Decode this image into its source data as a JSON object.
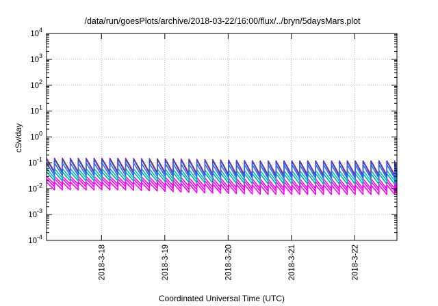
{
  "chart_data": {
    "type": "line",
    "title": "/data/run/goesPlots/archive/2018-03-22/16:00/flux/../bryn/5daysMars.plot",
    "xlabel": "Coordinated Universal Time (UTC)",
    "ylabel": "cSv/day",
    "yscale": "log",
    "ylim": [
      0.0001,
      10000
    ],
    "y_ticks": [
      {
        "value": 0.0001,
        "base": "10",
        "exp": "-4"
      },
      {
        "value": 0.001,
        "base": "10",
        "exp": "-3"
      },
      {
        "value": 0.01,
        "base": "10",
        "exp": "-2"
      },
      {
        "value": 0.1,
        "base": "10",
        "exp": "-1"
      },
      {
        "value": 1,
        "base": "10",
        "exp": "0"
      },
      {
        "value": 10,
        "base": "10",
        "exp": "1"
      },
      {
        "value": 100,
        "base": "10",
        "exp": "2"
      },
      {
        "value": 1000,
        "base": "10",
        "exp": "3"
      },
      {
        "value": 10000,
        "base": "10",
        "exp": "4"
      }
    ],
    "xlim": [
      "2018-03-17 03:10",
      "2018-03-22 16:00"
    ],
    "x_ticks": [
      {
        "value": "2018-03-18 00:00",
        "label": "2018-3-18"
      },
      {
        "value": "2018-03-19 00:00",
        "label": "2018-3-19"
      },
      {
        "value": "2018-03-20 00:00",
        "label": "2018-3-20"
      },
      {
        "value": "2018-03-21 00:00",
        "label": "2018-3-21"
      },
      {
        "value": "2018-03-22 00:00",
        "label": "2018-3-22"
      }
    ],
    "grid": true,
    "legend": "none",
    "series": [
      {
        "color": "#ff00ff",
        "pattern": "sawtooth",
        "peak_values": [
          0.018,
          0.018,
          0.016,
          0.014,
          0.014,
          0.014
        ],
        "trough_values": [
          0.009,
          0.009,
          0.007,
          0.006,
          0.006,
          0.006
        ]
      },
      {
        "color": "#ff00ff",
        "pattern": "sawtooth",
        "peak_values": [
          0.024,
          0.024,
          0.021,
          0.019,
          0.019,
          0.019
        ],
        "trough_values": [
          0.012,
          0.012,
          0.009,
          0.008,
          0.008,
          0.008
        ]
      },
      {
        "color": "#ff00ff",
        "pattern": "sawtooth",
        "peak_values": [
          0.03,
          0.03,
          0.027,
          0.024,
          0.024,
          0.024
        ],
        "trough_values": [
          0.015,
          0.015,
          0.012,
          0.01,
          0.01,
          0.01
        ]
      },
      {
        "color": "#00aaaa",
        "pattern": "sawtooth",
        "peak_values": [
          0.045,
          0.045,
          0.042,
          0.038,
          0.038,
          0.038
        ],
        "trough_values": [
          0.02,
          0.02,
          0.017,
          0.015,
          0.015,
          0.015
        ]
      },
      {
        "color": "#00bbbb",
        "pattern": "sawtooth",
        "peak_values": [
          0.06,
          0.06,
          0.055,
          0.05,
          0.05,
          0.05
        ],
        "trough_values": [
          0.026,
          0.026,
          0.022,
          0.02,
          0.02,
          0.02
        ]
      },
      {
        "color": "#ff0000",
        "pattern": "sawtooth",
        "peak_values": [
          0.15,
          0.15,
          0.14,
          0.12,
          0.12,
          0.12
        ],
        "trough_values": [
          0.045,
          0.045,
          0.038,
          0.034,
          0.034,
          0.034
        ]
      },
      {
        "color": "#2255dd",
        "pattern": "sawtooth",
        "peak_values": [
          0.14,
          0.14,
          0.13,
          0.115,
          0.115,
          0.115
        ],
        "trough_values": [
          0.04,
          0.04,
          0.034,
          0.03,
          0.03,
          0.03
        ]
      },
      {
        "color": "#3366ee",
        "pattern": "sawtooth",
        "peak_values": [
          0.1,
          0.1,
          0.09,
          0.085,
          0.085,
          0.085
        ],
        "trough_values": [
          0.032,
          0.032,
          0.028,
          0.025,
          0.025,
          0.025
        ]
      }
    ],
    "cycle_hours": 3
  }
}
